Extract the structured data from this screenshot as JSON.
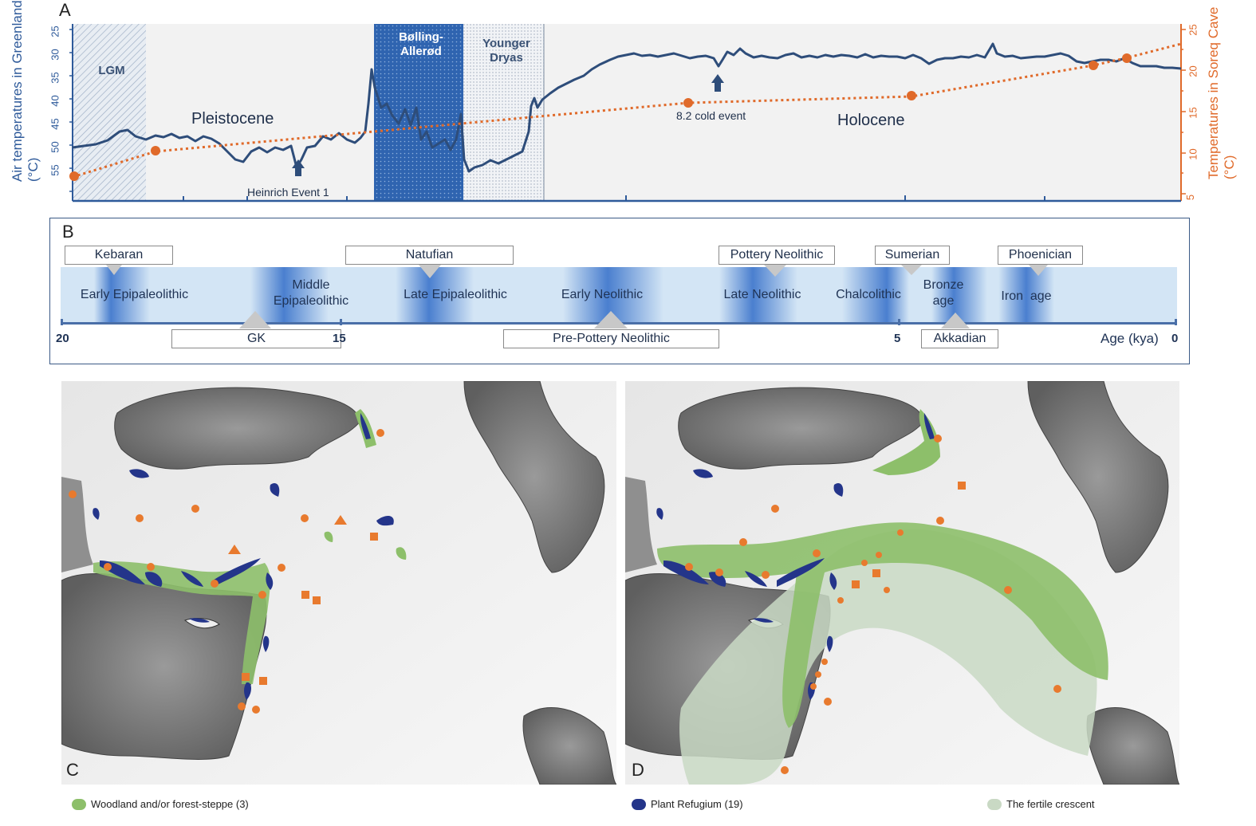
{
  "panel_a": {
    "letter": "A",
    "left_axis_title": "Air temperatures in Greenland (°C)",
    "right_axis_title": "Temperatures in Soreq Cave (°C)",
    "left_ticks": [
      "25",
      "30",
      "35",
      "40",
      "45",
      "50",
      "55"
    ],
    "right_ticks": [
      "25",
      "20",
      "15",
      "10",
      "5"
    ],
    "bands": {
      "lgm": "LGM",
      "bolling": "Bølling-Allerød",
      "younger": "Younger Dryas"
    },
    "eras": {
      "pleistocene": "Pleistocene",
      "holocene": "Holocene"
    },
    "events": {
      "heinrich": "Heinrich Event 1",
      "cold82": "8.2 cold event"
    },
    "colors": {
      "greenland_line": "#2e4d7a",
      "soreq_line": "#e06a2a",
      "left_axis": "#2e5a9a",
      "right_axis": "#e06a2a"
    }
  },
  "panel_b": {
    "letter": "B",
    "cultures_top": [
      "Kebaran",
      "Natufian",
      "Pottery Neolithic",
      "Sumerian",
      "Phoenician"
    ],
    "cultures_bottom": [
      "GK",
      "Pre-Pottery Neolithic",
      "Akkadian"
    ],
    "periods": [
      "Early Epipaleolithic",
      "Middle Epipaleolithic",
      "Late Epipaleolithic",
      "Early Neolithic",
      "Late Neolithic",
      "Chalcolithic",
      "Bronze age",
      "Iron  age"
    ],
    "ticks": [
      "20",
      "15",
      "5",
      "0"
    ],
    "axis_title": "Age (kya)"
  },
  "maps": {
    "left_letter": "C",
    "right_letter": "D"
  },
  "legend": {
    "woodland": "Woodland and/or forest-steppe (3)",
    "refugium": "Plant Refugium (19)",
    "fertile": "The fertile crescent",
    "colors": {
      "woodland": "#8dbf6a",
      "refugium": "#24358a",
      "fertile": "#c9d9c4",
      "sites": "#e87a2e"
    }
  }
}
